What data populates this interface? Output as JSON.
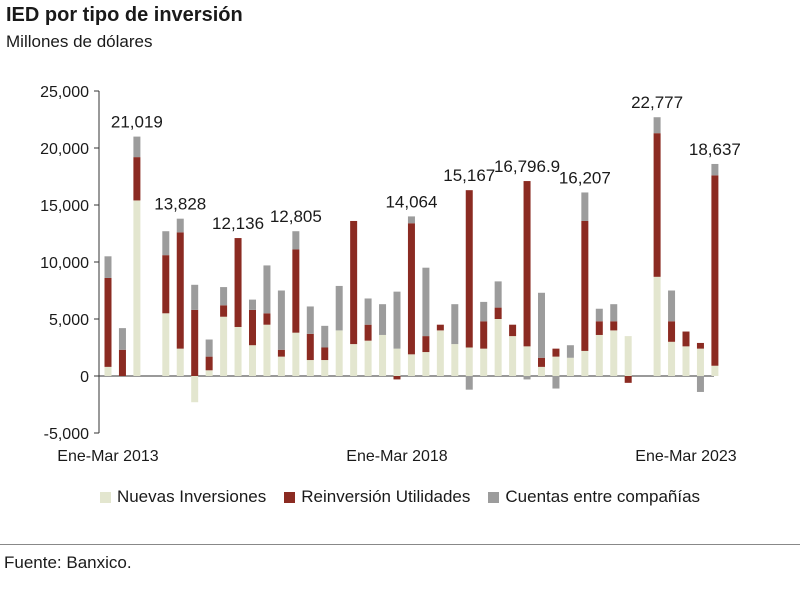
{
  "title": "IED por tipo de inversión",
  "subtitle": "Millones de dólares",
  "source": "Fuente: Banxico.",
  "colors": {
    "nuevas": "#e3e6cf",
    "reinversion": "#8b2b22",
    "cuentas": "#9c9c9c"
  },
  "chart_data": {
    "type": "bar",
    "stacked": true,
    "title": "IED por tipo de inversión",
    "subtitle": "Millones de dólares",
    "ylim": [
      -5000,
      25000
    ],
    "yticks": [
      {
        "value": 25000,
        "label": "25,000"
      },
      {
        "value": 20000,
        "label": "20,000"
      },
      {
        "value": 15000,
        "label": "15,000"
      },
      {
        "value": 10000,
        "label": "10,000"
      },
      {
        "value": 5000,
        "label": "5,000"
      },
      {
        "value": 0,
        "label": "0"
      },
      {
        "value": -5000,
        "label": "-5,000"
      }
    ],
    "xticks": [
      {
        "index": 0,
        "label": "Ene-Mar 2013"
      },
      {
        "index": 20,
        "label": "Ene-Mar 2018"
      },
      {
        "index": 40,
        "label": "Ene-Mar 2023"
      }
    ],
    "legend_position": "bottom",
    "grid": false,
    "series": [
      {
        "name": "Nuevas Inversiones",
        "color_key": "nuevas",
        "values": [
          800,
          0,
          15400,
          0,
          5500,
          2400,
          -2300,
          500,
          5200,
          4300,
          2700,
          4500,
          1700,
          3800,
          1400,
          1400,
          4000,
          2800,
          3100,
          3600,
          2400,
          1900,
          2100,
          4000,
          2800,
          2500,
          2400,
          5000,
          3500,
          2600,
          800,
          1700,
          1600,
          2200,
          3600,
          4000,
          3500,
          0,
          8700,
          3000,
          2600,
          2400,
          900
        ]
      },
      {
        "name": "Reinversión Utilidades",
        "color_key": "reinversion",
        "values": [
          7800,
          2300,
          3800,
          0,
          5100,
          10200,
          5800,
          1200,
          1000,
          7800,
          3100,
          1000,
          600,
          7300,
          2300,
          1100,
          0,
          10800,
          1400,
          0,
          -300,
          11500,
          1400,
          500,
          0,
          13800,
          2400,
          1000,
          1000,
          14500,
          800,
          700,
          0,
          11400,
          1200,
          800,
          -600,
          0,
          12600,
          1800,
          1300,
          500,
          16700
        ]
      },
      {
        "name": "Cuentas entre compañías",
        "color_key": "cuentas",
        "values": [
          1900,
          1900,
          1800,
          0,
          2100,
          1200,
          2200,
          1500,
          1600,
          0,
          900,
          4200,
          5200,
          1600,
          2400,
          1900,
          3900,
          0,
          2300,
          2700,
          5000,
          600,
          6000,
          0,
          3500,
          -1200,
          1700,
          2300,
          0,
          -300,
          5700,
          -1100,
          1100,
          2500,
          1100,
          1500,
          0,
          0,
          1400,
          2700,
          0,
          -1400,
          1000
        ]
      }
    ],
    "annotations": [
      {
        "index": 2,
        "label": "21,019"
      },
      {
        "index": 5,
        "label": "13,828"
      },
      {
        "index": 9,
        "label": "12,136"
      },
      {
        "index": 13,
        "label": "12,805"
      },
      {
        "index": 21,
        "label": "14,064"
      },
      {
        "index": 25,
        "label": "15,167"
      },
      {
        "index": 29,
        "label": "16,796.9"
      },
      {
        "index": 33,
        "label": "16,207"
      },
      {
        "index": 38,
        "label": "22,777"
      },
      {
        "index": 42,
        "label": "18,637"
      }
    ]
  }
}
